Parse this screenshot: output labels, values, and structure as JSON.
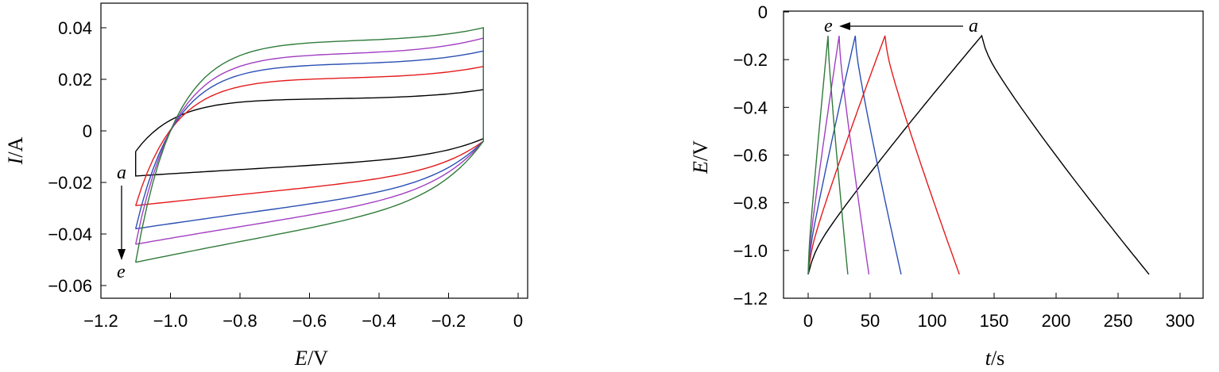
{
  "chart_data": [
    {
      "type": "line",
      "title": "",
      "xlabel": {
        "var": "E",
        "unit": "/V"
      },
      "ylabel": {
        "var": "I",
        "unit": "/A"
      },
      "xlim": [
        -1.2,
        0
      ],
      "ylim": [
        -0.06,
        0.04
      ],
      "xticks": [
        "−1.2",
        "−1.0",
        "−0.8",
        "−0.6",
        "−0.4",
        "−0.2",
        "0"
      ],
      "yticks": [
        "0.04",
        "0.02",
        "0",
        "−0.02",
        "−0.04",
        "−0.06"
      ],
      "xtick_values": [
        -1.2,
        -1.0,
        -0.8,
        -0.6,
        -0.4,
        -0.2,
        0
      ],
      "ytick_values": [
        0.04,
        0.02,
        0,
        -0.02,
        -0.04,
        -0.06
      ],
      "annotation_start": "a",
      "annotation_end": "e",
      "curve_shape": "cyclic voltammetry loop",
      "series": [
        {
          "color": "#000000",
          "x_range": [
            -1.1,
            -0.1
          ],
          "upper_level": 0.0125,
          "lower_start": -0.0175,
          "lower_end": -0.003,
          "vertex_top": 0.016,
          "top_start": -0.008
        },
        {
          "color": "#e41a1c",
          "x_range": [
            -1.1,
            -0.1
          ],
          "upper_level": 0.0205,
          "lower_start": -0.029,
          "lower_end": -0.004,
          "vertex_top": 0.025,
          "top_start": -0.029
        },
        {
          "color": "#2a4fb3",
          "x_range": [
            -1.1,
            -0.1
          ],
          "upper_level": 0.026,
          "lower_start": -0.038,
          "lower_end": -0.004,
          "vertex_top": 0.031,
          "top_start": -0.038
        },
        {
          "color": "#a23fc2",
          "x_range": [
            -1.1,
            -0.1
          ],
          "upper_level": 0.03,
          "lower_start": -0.044,
          "lower_end": -0.004,
          "vertex_top": 0.036,
          "top_start": -0.044
        },
        {
          "color": "#2f7a3a",
          "x_range": [
            -1.1,
            -0.1
          ],
          "upper_level": 0.035,
          "lower_start": -0.051,
          "lower_end": -0.004,
          "vertex_top": 0.04,
          "top_start": -0.051
        }
      ]
    },
    {
      "type": "line",
      "title": "",
      "xlabel": {
        "var": "t",
        "unit": "/s"
      },
      "ylabel": {
        "var": "E",
        "unit": "/V"
      },
      "xlim": [
        -10,
        315
      ],
      "ylim": [
        -1.2,
        0
      ],
      "xticks": [
        "0",
        "50",
        "100",
        "150",
        "200",
        "250",
        "300"
      ],
      "yticks": [
        "0",
        "−0.2",
        "−0.4",
        "−0.6",
        "−0.8",
        "−1.0",
        "−1.2"
      ],
      "xtick_values": [
        0,
        50,
        100,
        150,
        200,
        250,
        300
      ],
      "ytick_values": [
        0,
        -0.2,
        -0.4,
        -0.6,
        -0.8,
        -1.0,
        -1.2
      ],
      "annotation_start": "a",
      "annotation_end": "e",
      "curve_shape": "galvanostatic charge-discharge triangle",
      "series": [
        {
          "color": "#000000",
          "t_start": 0,
          "t_peak": 140,
          "t_end": 275,
          "e_min": -1.1,
          "e_max": -0.1
        },
        {
          "color": "#e41a1c",
          "t_start": 0,
          "t_peak": 62,
          "t_end": 122,
          "e_min": -1.1,
          "e_max": -0.1
        },
        {
          "color": "#2a4fb3",
          "t_start": 0,
          "t_peak": 38,
          "t_end": 75,
          "e_min": -1.1,
          "e_max": -0.1
        },
        {
          "color": "#a23fc2",
          "t_start": 0,
          "t_peak": 25,
          "t_end": 49,
          "e_min": -1.1,
          "e_max": -0.1
        },
        {
          "color": "#2f7a3a",
          "t_start": 0,
          "t_peak": 16,
          "t_end": 32,
          "e_min": -1.1,
          "e_max": -0.1
        }
      ]
    }
  ]
}
